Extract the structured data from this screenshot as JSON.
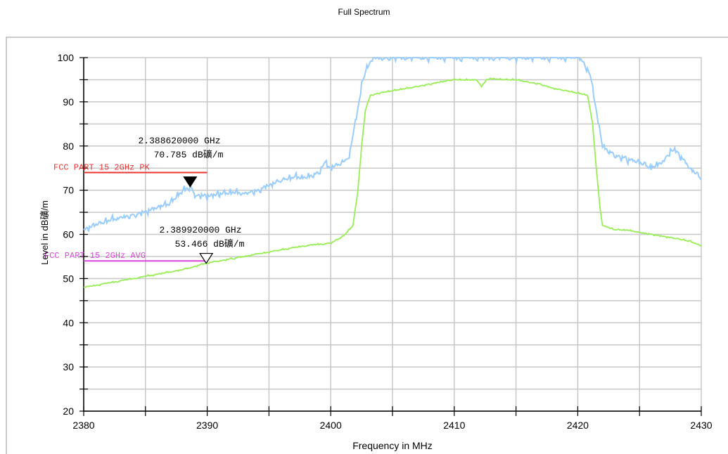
{
  "chart_data": {
    "type": "line",
    "title": "Full Spectrum",
    "xlabel": "Frequency in MHz",
    "ylabel": "Level in dB礦/m",
    "xlim": [
      2380,
      2430
    ],
    "ylim": [
      20,
      100
    ],
    "x_ticks": [
      2380,
      2390,
      2400,
      2410,
      2420,
      2430
    ],
    "y_ticks": [
      20,
      30,
      40,
      50,
      60,
      70,
      80,
      90,
      100
    ],
    "grid": true,
    "series": [
      {
        "color": "#99ccff",
        "points": [
          [
            2380,
            61
          ],
          [
            2381,
            62
          ],
          [
            2382,
            63
          ],
          [
            2383,
            64
          ],
          [
            2384,
            64.5
          ],
          [
            2385,
            65
          ],
          [
            2386,
            66
          ],
          [
            2387,
            67
          ],
          [
            2388,
            70
          ],
          [
            2388.62,
            70.785
          ],
          [
            2389,
            69
          ],
          [
            2390,
            68.5
          ],
          [
            2391,
            69
          ],
          [
            2392,
            69.5
          ],
          [
            2393,
            69.5
          ],
          [
            2394,
            70
          ],
          [
            2395,
            71
          ],
          [
            2396,
            72
          ],
          [
            2397,
            73
          ],
          [
            2398,
            73
          ],
          [
            2399,
            74
          ],
          [
            2399.5,
            76
          ],
          [
            2400,
            75
          ],
          [
            2401,
            76
          ],
          [
            2401.5,
            78
          ],
          [
            2402,
            85
          ],
          [
            2402.5,
            94
          ],
          [
            2403,
            98
          ],
          [
            2403.5,
            100
          ],
          [
            2404.5,
            100
          ],
          [
            2419.9,
            100
          ],
          [
            2420.5,
            99
          ],
          [
            2421,
            96
          ],
          [
            2421.5,
            88
          ],
          [
            2422,
            80
          ],
          [
            2423,
            78
          ],
          [
            2424,
            77
          ],
          [
            2425,
            76
          ],
          [
            2426,
            75
          ],
          [
            2427,
            77
          ],
          [
            2427.5,
            79
          ],
          [
            2428,
            79
          ],
          [
            2429,
            75
          ],
          [
            2430,
            72.5
          ]
        ]
      },
      {
        "color": "#99ee55",
        "points": [
          [
            2380,
            48
          ],
          [
            2382,
            49
          ],
          [
            2384,
            50
          ],
          [
            2386,
            51
          ],
          [
            2388,
            52
          ],
          [
            2389.92,
            53.466
          ],
          [
            2392,
            54.5
          ],
          [
            2394,
            55.5
          ],
          [
            2396,
            56.5
          ],
          [
            2398,
            57.5
          ],
          [
            2400,
            58
          ],
          [
            2401,
            59.5
          ],
          [
            2401.8,
            62
          ],
          [
            2402.2,
            70
          ],
          [
            2402.5,
            80
          ],
          [
            2402.8,
            88
          ],
          [
            2403.2,
            91.5
          ],
          [
            2404,
            92
          ],
          [
            2405,
            92.5
          ],
          [
            2406,
            93
          ],
          [
            2407,
            93.5
          ],
          [
            2408,
            94
          ],
          [
            2409,
            94.5
          ],
          [
            2410,
            95
          ],
          [
            2411,
            95
          ],
          [
            2411.8,
            95
          ],
          [
            2412.2,
            93.5
          ],
          [
            2412.6,
            95
          ],
          [
            2413,
            95.2
          ],
          [
            2414,
            95
          ],
          [
            2415,
            95
          ],
          [
            2416,
            94.5
          ],
          [
            2417,
            94
          ],
          [
            2418,
            93
          ],
          [
            2419,
            92.5
          ],
          [
            2420,
            92
          ],
          [
            2420.8,
            91.5
          ],
          [
            2421.2,
            85
          ],
          [
            2421.5,
            75
          ],
          [
            2421.8,
            66
          ],
          [
            2422,
            62
          ],
          [
            2423,
            61
          ],
          [
            2424,
            61
          ],
          [
            2425,
            60.5
          ],
          [
            2426,
            60
          ],
          [
            2427,
            59.5
          ],
          [
            2428,
            59
          ],
          [
            2429,
            58.5
          ],
          [
            2430,
            57.5
          ]
        ]
      }
    ],
    "limit_lines": [
      {
        "label": "FCC PART 15 2GHz  PK",
        "y": 74,
        "x_range": [
          2380,
          2390
        ],
        "color": "#ee3333"
      },
      {
        "label": "FCC PART 15 2GHz  AVG",
        "y": 54,
        "x_range": [
          2380,
          2390
        ],
        "color": "#dd44dd"
      }
    ],
    "markers": [
      {
        "freq_label": "2.388620000 GHz",
        "level_label": "70.785  dB礦/m",
        "x": 2388.62,
        "y": 70.785,
        "filled": true
      },
      {
        "freq_label": "2.389920000 GHz",
        "level_label": "53.466  dB礦/m",
        "x": 2389.92,
        "y": 53.466,
        "filled": false
      }
    ]
  }
}
